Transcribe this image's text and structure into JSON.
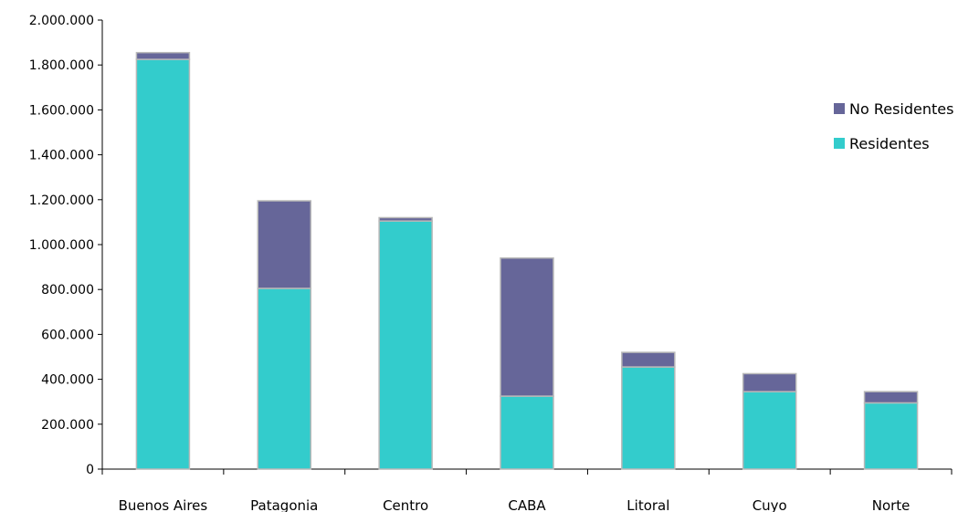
{
  "chart_data": {
    "type": "bar",
    "stacked": true,
    "categories": [
      "Buenos Aires",
      "Patagonia",
      "Centro",
      "CABA",
      "Litoral",
      "Cuyo",
      "Norte"
    ],
    "series": [
      {
        "name": "Residentes",
        "color": "#33CCCC",
        "values": [
          1825000,
          805000,
          1105000,
          325000,
          455000,
          345000,
          295000
        ]
      },
      {
        "name": "No Residentes",
        "color": "#666699",
        "values": [
          30000,
          390000,
          15000,
          615000,
          65000,
          80000,
          50000
        ]
      }
    ],
    "ylim": [
      0,
      2000000
    ],
    "yticks": [
      0,
      200000,
      400000,
      600000,
      800000,
      1000000,
      1200000,
      1400000,
      1600000,
      1800000,
      2000000
    ],
    "ytick_labels": [
      "0",
      "200.000",
      "400.000",
      "600.000",
      "800.000",
      "1.000.000",
      "1.200.000",
      "1.400.000",
      "1.600.000",
      "1.800.000",
      "2.000.000"
    ],
    "title": "",
    "xlabel": "",
    "ylabel": "",
    "grid": false,
    "legend": {
      "position": "top-right",
      "entries": [
        {
          "label": "No Residentes",
          "color": "#666699"
        },
        {
          "label": "Residentes",
          "color": "#33CCCC"
        }
      ]
    }
  }
}
